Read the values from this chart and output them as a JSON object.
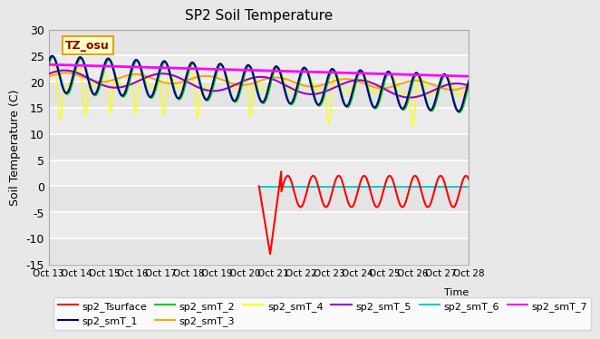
{
  "title": "SP2 Soil Temperature",
  "ylabel": "Soil Temperature (C)",
  "ylim": [
    -15,
    30
  ],
  "xlim": [
    0,
    15
  ],
  "xtick_labels": [
    "Oct 13",
    "Oct 14",
    "Oct 15",
    "Oct 16",
    "Oct 17",
    "Oct 18",
    "Oct 19",
    "Oct 20",
    "Oct 21",
    "Oct 22",
    "Oct 23",
    "Oct 24",
    "Oct 25",
    "Oct 26",
    "Oct 27",
    "Oct 28"
  ],
  "annotation_text": "TZ_osu",
  "annotation_color": "#8B0000",
  "annotation_bg": "#FFFFC0",
  "annotation_border": "#DAA520",
  "bg_color": "#E8E8E8",
  "plot_bg": "#F0F0F0",
  "colors": {
    "Tsurface": "#FF0000",
    "smT_1": "#00008B",
    "smT_2": "#00CC00",
    "smT_3": "#FFA500",
    "smT_4": "#FFFF00",
    "smT_5": "#9900CC",
    "smT_6": "#00CCCC",
    "smT_7": "#FF00FF"
  },
  "legend_entries": [
    {
      "label": "sp2_Tsurface",
      "color": "#FF0000"
    },
    {
      "label": "sp2_smT_1",
      "color": "#00008B"
    },
    {
      "label": "sp2_smT_2",
      "color": "#00CC00"
    },
    {
      "label": "sp2_smT_3",
      "color": "#FFA500"
    },
    {
      "label": "sp2_smT_4",
      "color": "#FFFF00"
    },
    {
      "label": "sp2_smT_5",
      "color": "#9900CC"
    },
    {
      "label": "sp2_smT_6",
      "color": "#00CCCC"
    },
    {
      "label": "sp2_smT_7",
      "color": "#FF00FF"
    }
  ]
}
